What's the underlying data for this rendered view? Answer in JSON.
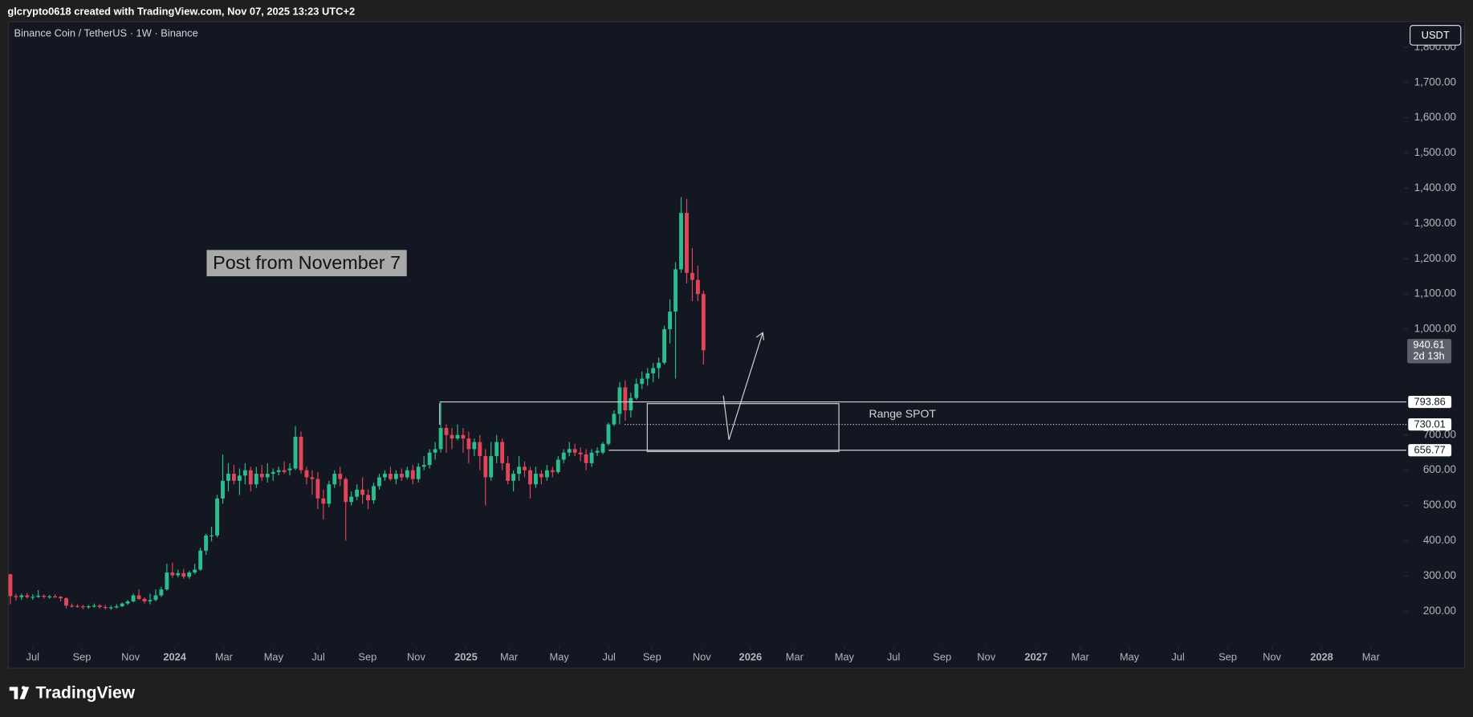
{
  "header": {
    "credit": "glcrypto0618 created with TradingView.com, Nov 07, 2025 13:23 UTC+2",
    "brand": "TradingView"
  },
  "chart_data": {
    "type": "candlestick",
    "title": "Binance Coin / TetherUS · 1W · Binance",
    "currency": "USDT",
    "annotation": "Post from November 7",
    "range_label": "Range SPOT",
    "countdown": "2d 13h",
    "up_color": "#2bbd8e",
    "down_color": "#e2455a",
    "x": [
      0,
      1,
      2,
      3,
      4,
      5,
      6,
      7,
      8,
      9,
      10,
      11,
      12,
      13,
      14,
      15,
      16,
      17,
      18,
      19,
      20,
      21,
      22,
      23,
      24,
      25,
      26,
      27,
      28,
      29,
      30,
      31,
      32,
      33,
      34,
      35,
      36,
      37,
      38,
      39,
      40,
      41,
      42,
      43,
      44,
      45,
      46,
      47,
      48,
      49,
      50,
      51,
      52,
      53,
      54,
      55,
      56,
      57,
      58,
      59,
      60,
      61,
      62,
      63,
      64,
      65,
      66,
      67,
      68,
      69,
      70,
      71,
      72,
      73,
      74,
      75,
      76,
      77,
      78,
      79,
      80,
      81,
      82,
      83,
      84,
      85,
      86,
      87,
      88,
      89,
      90,
      91,
      92,
      93,
      94,
      95,
      96,
      97,
      98,
      99,
      100,
      101,
      102,
      103,
      104,
      105,
      106,
      107,
      108,
      109,
      110,
      111,
      112,
      113,
      114,
      115,
      116,
      117,
      118,
      119,
      120,
      121,
      122,
      123,
      124
    ],
    "open": [
      305,
      243,
      240,
      245,
      240,
      241,
      244,
      241,
      242,
      241,
      237,
      216,
      215,
      214,
      213,
      214,
      216,
      212,
      210,
      211,
      214,
      222,
      228,
      245,
      235,
      228,
      232,
      245,
      262,
      310,
      302,
      308,
      298,
      310,
      318,
      372,
      415,
      415,
      520,
      570,
      590,
      570,
      585,
      600,
      560,
      590,
      580,
      590,
      595,
      600,
      600,
      605,
      695,
      600,
      580,
      575,
      520,
      505,
      560,
      590,
      575,
      510,
      525,
      545,
      530,
      515,
      555,
      580,
      590,
      575,
      590,
      580,
      600,
      575,
      610,
      615,
      650,
      660,
      720,
      700,
      690,
      700,
      690,
      660,
      680,
      640,
      580,
      640,
      680,
      620,
      570,
      590,
      610,
      600,
      560,
      590,
      580,
      600,
      595,
      630,
      650,
      660,
      650,
      645,
      620,
      650,
      650,
      675,
      730,
      760,
      835,
      770,
      805,
      845,
      860,
      875,
      890,
      905,
      1000,
      1050,
      1170,
      1330,
      1160,
      1140,
      1100
    ],
    "high": [
      306,
      250,
      250,
      252,
      248,
      260,
      248,
      246,
      248,
      243,
      240,
      222,
      220,
      218,
      218,
      222,
      220,
      218,
      216,
      220,
      225,
      232,
      250,
      262,
      240,
      250,
      262,
      270,
      335,
      338,
      318,
      320,
      315,
      335,
      380,
      420,
      440,
      530,
      645,
      620,
      615,
      605,
      620,
      610,
      610,
      615,
      620,
      605,
      610,
      625,
      620,
      725,
      710,
      610,
      600,
      595,
      545,
      570,
      600,
      610,
      580,
      540,
      560,
      580,
      545,
      565,
      590,
      600,
      610,
      600,
      605,
      610,
      615,
      620,
      640,
      660,
      680,
      793,
      730,
      720,
      730,
      720,
      710,
      690,
      700,
      660,
      680,
      700,
      690,
      640,
      600,
      640,
      625,
      610,
      610,
      600,
      615,
      610,
      640,
      660,
      680,
      675,
      665,
      660,
      660,
      665,
      680,
      735,
      770,
      850,
      855,
      820,
      860,
      880,
      890,
      905,
      920,
      1010,
      1085,
      1190,
      1375,
      1370,
      1230,
      1180,
      1110
    ],
    "low": [
      220,
      230,
      232,
      236,
      232,
      238,
      236,
      235,
      238,
      228,
      208,
      210,
      210,
      206,
      207,
      210,
      208,
      205,
      204,
      207,
      212,
      218,
      225,
      232,
      222,
      220,
      228,
      240,
      258,
      295,
      296,
      292,
      292,
      305,
      315,
      360,
      398,
      410,
      505,
      540,
      560,
      530,
      560,
      540,
      550,
      570,
      565,
      570,
      585,
      590,
      585,
      600,
      590,
      560,
      530,
      490,
      460,
      495,
      550,
      555,
      400,
      500,
      515,
      505,
      490,
      505,
      545,
      570,
      570,
      560,
      570,
      575,
      560,
      565,
      600,
      605,
      630,
      650,
      650,
      660,
      685,
      650,
      620,
      640,
      600,
      500,
      570,
      620,
      600,
      560,
      540,
      570,
      580,
      520,
      550,
      560,
      570,
      580,
      590,
      620,
      640,
      640,
      625,
      600,
      610,
      640,
      645,
      670,
      725,
      730,
      740,
      750,
      800,
      830,
      840,
      850,
      860,
      900,
      960,
      860,
      1160,
      1130,
      1080,
      1080,
      900
    ],
    "close": [
      243,
      240,
      245,
      240,
      241,
      244,
      241,
      242,
      241,
      237,
      216,
      215,
      214,
      213,
      214,
      216,
      212,
      210,
      211,
      214,
      222,
      228,
      245,
      235,
      228,
      232,
      245,
      262,
      310,
      302,
      308,
      298,
      310,
      318,
      372,
      415,
      415,
      520,
      570,
      590,
      570,
      585,
      600,
      560,
      590,
      580,
      590,
      595,
      600,
      595,
      605,
      695,
      600,
      580,
      575,
      520,
      505,
      560,
      590,
      575,
      510,
      525,
      545,
      530,
      515,
      555,
      580,
      590,
      575,
      590,
      580,
      600,
      575,
      610,
      615,
      650,
      660,
      720,
      700,
      690,
      700,
      690,
      660,
      680,
      640,
      580,
      640,
      680,
      620,
      570,
      590,
      610,
      600,
      560,
      590,
      580,
      600,
      595,
      630,
      650,
      660,
      650,
      645,
      620,
      650,
      655,
      675,
      730,
      760,
      835,
      770,
      805,
      845,
      860,
      875,
      890,
      905,
      1000,
      1050,
      1170,
      1330,
      1160,
      1140,
      1100,
      940.61
    ],
    "levels": [
      793.86,
      730.01,
      656.77
    ],
    "xlim": [
      -0.34,
      249.4
    ],
    "xticks": [
      {
        "value": 4.0,
        "label": "Jul"
      },
      {
        "value": 12.8,
        "label": "Sep"
      },
      {
        "value": 21.5,
        "label": "Nov"
      },
      {
        "value": 29.4,
        "label": "2024"
      },
      {
        "value": 38.2,
        "label": "Mar"
      },
      {
        "value": 47.1,
        "label": "May"
      },
      {
        "value": 55.1,
        "label": "Jul"
      },
      {
        "value": 63.9,
        "label": "Sep"
      },
      {
        "value": 72.6,
        "label": "Nov"
      },
      {
        "value": 81.5,
        "label": "2025"
      },
      {
        "value": 89.2,
        "label": "Mar"
      },
      {
        "value": 98.2,
        "label": "May"
      },
      {
        "value": 107.1,
        "label": "Jul"
      },
      {
        "value": 114.8,
        "label": "Sep"
      },
      {
        "value": 123.7,
        "label": "Nov"
      },
      {
        "value": 132.4,
        "label": "2026"
      },
      {
        "value": 140.3,
        "label": "Mar"
      },
      {
        "value": 149.2,
        "label": "May"
      },
      {
        "value": 158.0,
        "label": "Jul"
      },
      {
        "value": 166.7,
        "label": "Sep"
      },
      {
        "value": 174.6,
        "label": "Nov"
      },
      {
        "value": 183.5,
        "label": "2027"
      },
      {
        "value": 191.4,
        "label": "Mar"
      },
      {
        "value": 200.2,
        "label": "May"
      },
      {
        "value": 208.9,
        "label": "Jul"
      },
      {
        "value": 217.8,
        "label": "Sep"
      },
      {
        "value": 225.7,
        "label": "Nov"
      },
      {
        "value": 234.6,
        "label": "2028"
      },
      {
        "value": 243.4,
        "label": "Mar"
      }
    ],
    "ylim": [
      100,
      1870
    ],
    "yticks": [
      {
        "value": 200,
        "label": "200.00"
      },
      {
        "value": 300,
        "label": "300.00"
      },
      {
        "value": 400,
        "label": "400.00"
      },
      {
        "value": 500,
        "label": "500.00"
      },
      {
        "value": 600,
        "label": "600.00"
      },
      {
        "value": 700,
        "label": "700.00"
      },
      {
        "value": 1000,
        "label": "1,000.00"
      },
      {
        "value": 1100,
        "label": "1,100.00"
      },
      {
        "value": 1200,
        "label": "1,200.00"
      },
      {
        "value": 1300,
        "label": "1,300.00"
      },
      {
        "value": 1400,
        "label": "1,400.00"
      },
      {
        "value": 1500,
        "label": "1,500.00"
      },
      {
        "value": 1600,
        "label": "1,600.00"
      },
      {
        "value": 1700,
        "label": "1,700.00"
      },
      {
        "value": 1800,
        "label": "1,800.00"
      }
    ],
    "grid": false
  }
}
